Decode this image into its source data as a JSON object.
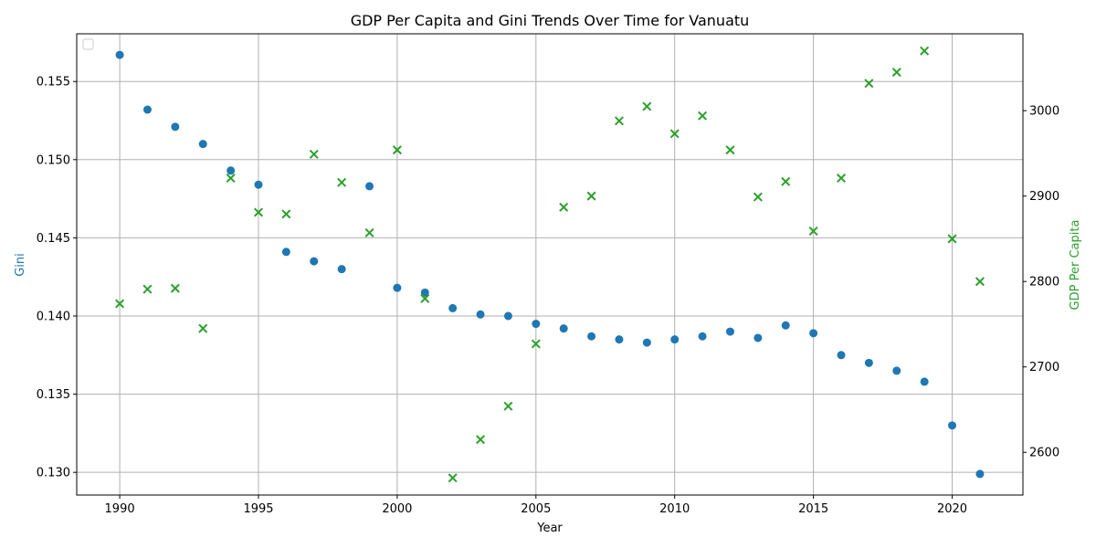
{
  "chart_data": {
    "type": "scatter",
    "title": "GDP Per Capita and Gini Trends Over Time for Vanuatu",
    "xlabel": "Year",
    "ylabel_left": "Gini",
    "ylabel_right": "GDP Per Capita",
    "xlim": [
      1988.45,
      2022.55
    ],
    "ylim_left": [
      0.12855,
      0.15805
    ],
    "ylim_right": [
      2550,
      3090
    ],
    "x_ticks": [
      1990,
      1995,
      2000,
      2005,
      2010,
      2015,
      2020
    ],
    "y_ticks_left": [
      0.13,
      0.135,
      0.14,
      0.145,
      0.15,
      0.155
    ],
    "y_ticks_right": [
      2600,
      2700,
      2800,
      2900,
      3000
    ],
    "grid": true,
    "legend": "top-left",
    "colors": {
      "gini": "#1f77b4",
      "gdp": "#2ca02c"
    },
    "series": [
      {
        "key": "gini",
        "axis": "left",
        "marker": "circle",
        "x": [
          1990,
          1991,
          1992,
          1993,
          1994,
          1995,
          1996,
          1997,
          1998,
          1999,
          2000,
          2001,
          2002,
          2003,
          2004,
          2005,
          2006,
          2007,
          2008,
          2009,
          2010,
          2011,
          2012,
          2013,
          2014,
          2015,
          2016,
          2017,
          2018,
          2019,
          2020,
          2021
        ],
        "values": [
          0.1567,
          0.1532,
          0.1521,
          0.151,
          0.1493,
          0.1484,
          0.1441,
          0.1435,
          0.143,
          0.1483,
          0.1418,
          0.1415,
          0.1405,
          0.1401,
          0.14,
          0.1395,
          0.1392,
          0.1387,
          0.1385,
          0.1383,
          0.1385,
          0.1387,
          0.139,
          0.1386,
          0.1394,
          0.1389,
          0.1375,
          0.137,
          0.1365,
          0.1358,
          0.133,
          0.1299
        ]
      },
      {
        "key": "gdp",
        "axis": "right",
        "marker": "x",
        "x": [
          1990,
          1991,
          1992,
          1993,
          1994,
          1995,
          1996,
          1997,
          1998,
          1999,
          2000,
          2001,
          2002,
          2003,
          2004,
          2005,
          2006,
          2007,
          2008,
          2009,
          2010,
          2011,
          2012,
          2013,
          2014,
          2015,
          2016,
          2017,
          2018,
          2019,
          2020,
          2021
        ],
        "values": [
          2774,
          2791,
          2792,
          2745,
          2921,
          2881,
          2879,
          2949,
          2916,
          2857,
          2954,
          2780,
          2570,
          2615,
          2654,
          2727,
          2887,
          2900,
          2988,
          3005,
          2973,
          2994,
          2954,
          2899,
          2917,
          2859,
          2921,
          3032,
          3045,
          3070,
          2850,
          2800
        ]
      }
    ]
  }
}
